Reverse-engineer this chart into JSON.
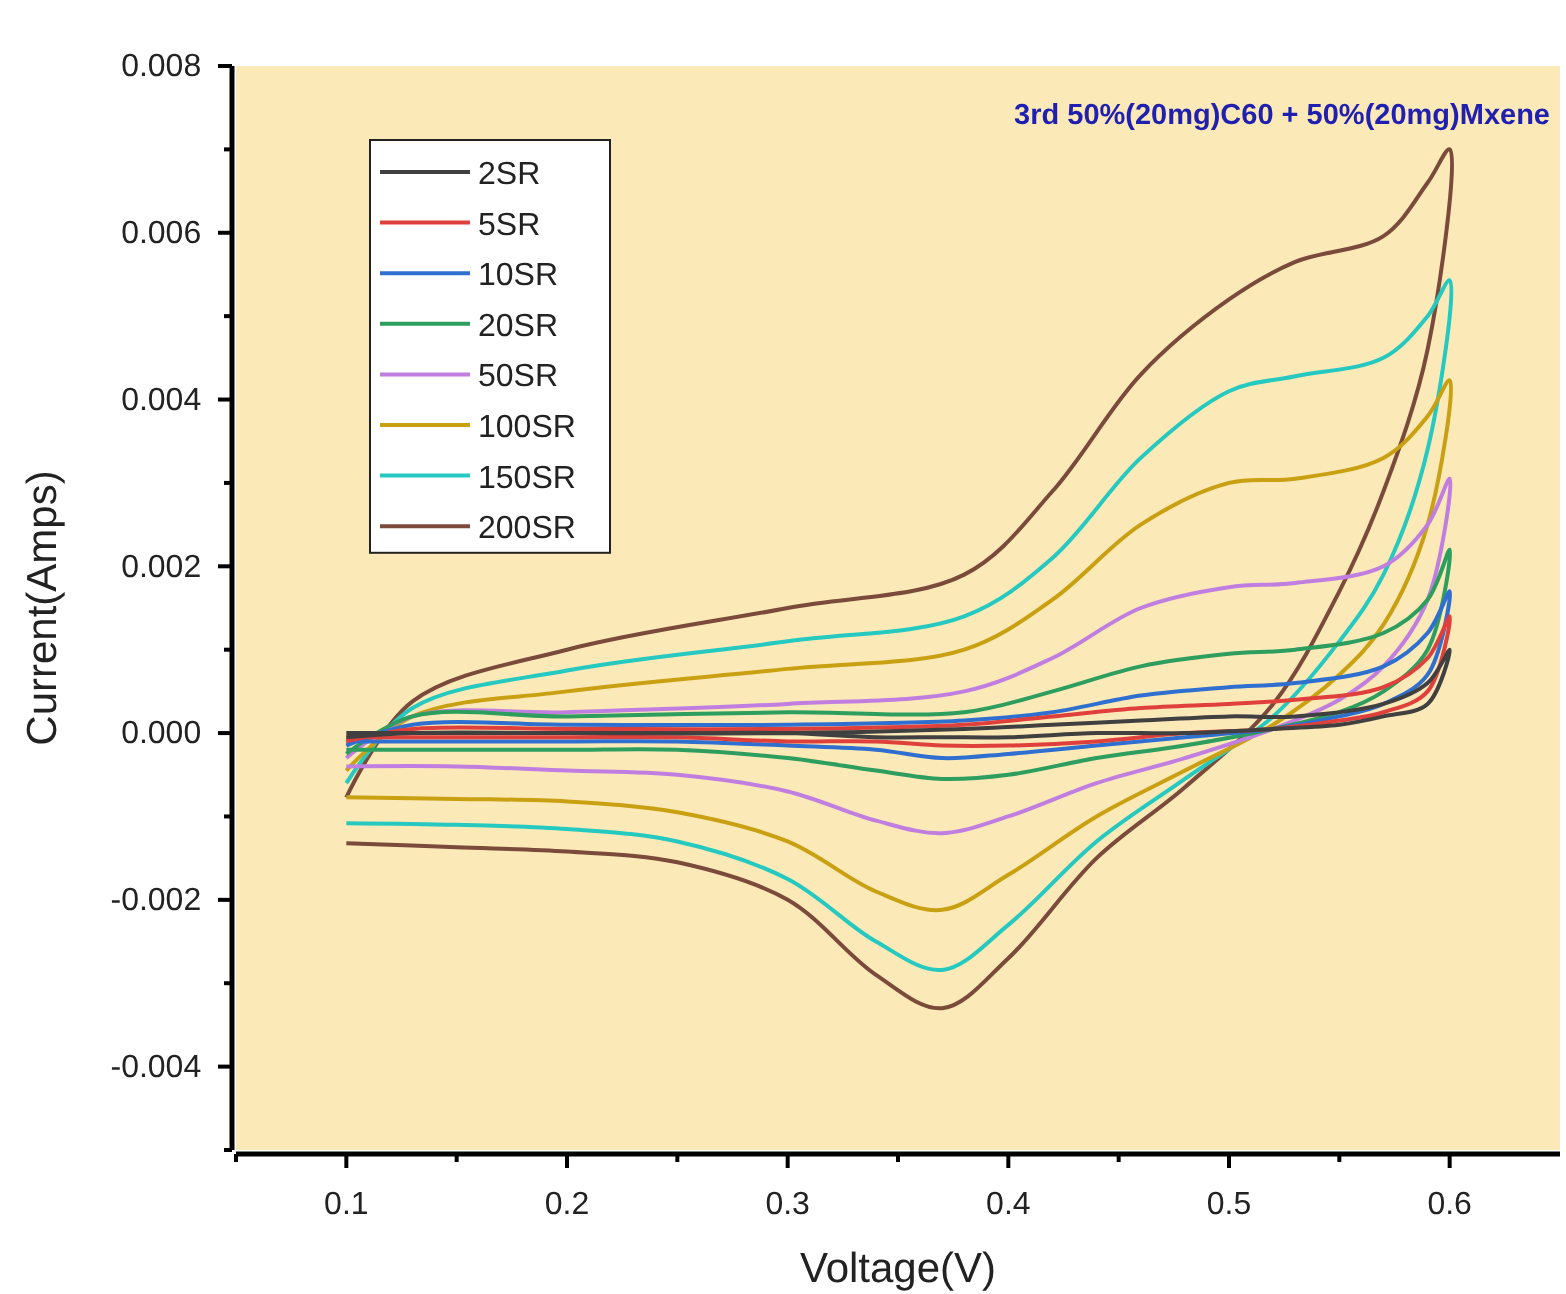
{
  "chart_data": {
    "type": "line",
    "title": "3rd 50%(20mg)C60 + 50%(20mg)Mxene",
    "xlabel": "Voltage(V)",
    "ylabel": "Current(Amps)",
    "x": [
      0.1,
      0.13,
      0.2,
      0.3,
      0.38,
      0.42,
      0.46,
      0.5,
      0.53,
      0.57,
      0.59,
      0.6,
      0.59,
      0.57,
      0.55,
      0.52,
      0.48,
      0.44,
      0.4,
      0.37,
      0.34,
      0.3,
      0.25,
      0.2,
      0.15,
      0.1
    ],
    "series": [
      {
        "name": "2SR",
        "color": "#404040",
        "values": [
          -5e-05,
          0,
          0,
          0,
          5e-05,
          0.0001,
          0.00015,
          0.0002,
          0.0002,
          0.00035,
          0.0006,
          0.001,
          0.00035,
          0.0002,
          0.0001,
          5e-05,
          0,
          0,
          -5e-05,
          -5e-05,
          -5e-05,
          0,
          0,
          0,
          0,
          0
        ]
      },
      {
        "name": "5SR",
        "color": "#e0403c",
        "values": [
          -0.0001,
          5e-05,
          5e-05,
          5e-05,
          0.0001,
          0.0002,
          0.0003,
          0.00035,
          0.0004,
          0.00055,
          0.0009,
          0.0014,
          0.0005,
          0.00025,
          0.00015,
          5e-05,
          0,
          -0.0001,
          -0.00015,
          -0.00015,
          -0.0001,
          -0.0001,
          -5e-05,
          -5e-05,
          -5e-05,
          -5e-05
        ]
      },
      {
        "name": "10SR",
        "color": "#2f6fcf",
        "values": [
          -0.00015,
          0.0001,
          0.0001,
          0.0001,
          0.00015,
          0.00025,
          0.00045,
          0.00055,
          0.0006,
          0.0008,
          0.0012,
          0.0017,
          0.0007,
          0.00035,
          0.0002,
          5e-05,
          -5e-05,
          -0.00015,
          -0.00025,
          -0.0003,
          -0.0002,
          -0.00015,
          -0.0001,
          -0.0001,
          -0.0001,
          -0.0001
        ]
      },
      {
        "name": "20SR",
        "color": "#2e9e5e",
        "values": [
          -0.00025,
          0.0002,
          0.0002,
          0.00025,
          0.00025,
          0.0005,
          0.0008,
          0.00095,
          0.001,
          0.0012,
          0.0016,
          0.0022,
          0.001,
          0.0005,
          0.00025,
          5e-05,
          -0.00015,
          -0.0003,
          -0.0005,
          -0.00055,
          -0.00045,
          -0.0003,
          -0.0002,
          -0.0002,
          -0.0002,
          -0.0002
        ]
      },
      {
        "name": "50SR",
        "color": "#c07fe0",
        "values": [
          -0.0003,
          0.0002,
          0.00025,
          0.00035,
          0.0005,
          0.0009,
          0.0015,
          0.00175,
          0.0018,
          0.002,
          0.0025,
          0.00305,
          0.0016,
          0.0008,
          0.0004,
          5e-05,
          -0.0003,
          -0.0006,
          -0.001,
          -0.0012,
          -0.00105,
          -0.0007,
          -0.0005,
          -0.00045,
          -0.0004,
          -0.0004
        ]
      },
      {
        "name": "100SR",
        "color": "#c8a012",
        "values": [
          -0.00045,
          0.0002,
          0.0005,
          0.00077,
          0.001,
          0.0016,
          0.0025,
          0.003,
          0.00305,
          0.0033,
          0.0038,
          0.00423,
          0.0025,
          0.0013,
          0.0007,
          0.0001,
          -0.00045,
          -0.001,
          -0.0017,
          -0.00212,
          -0.0019,
          -0.0013,
          -0.00095,
          -0.00082,
          -0.00079,
          -0.00077
        ]
      },
      {
        "name": "150SR",
        "color": "#25c9c0",
        "values": [
          -0.0006,
          0.0003,
          0.00075,
          0.0011,
          0.0014,
          0.0021,
          0.0033,
          0.0041,
          0.00428,
          0.0045,
          0.005,
          0.00543,
          0.0034,
          0.0019,
          0.0011,
          0.0002,
          -0.00055,
          -0.0013,
          -0.0023,
          -0.00284,
          -0.0025,
          -0.00175,
          -0.0013,
          -0.00115,
          -0.0011,
          -0.00108
        ]
      },
      {
        "name": "200SR",
        "color": "#7a4a3a",
        "values": [
          -0.00077,
          0.00038,
          0.001,
          0.0015,
          0.0019,
          0.0029,
          0.0043,
          0.0052,
          0.00565,
          0.00596,
          0.0066,
          0.007,
          0.0046,
          0.0029,
          0.0017,
          0.00035,
          -0.00065,
          -0.0015,
          -0.0027,
          -0.0033,
          -0.0029,
          -0.002,
          -0.00155,
          -0.00142,
          -0.00137,
          -0.00132
        ]
      }
    ],
    "xlim": [
      0.05,
      0.65
    ],
    "xticks": [
      {
        "value": 0.05,
        "label": null
      },
      0.1,
      {
        "value": 0.15,
        "label": null
      },
      0.2,
      {
        "value": 0.25,
        "label": null
      },
      0.3,
      {
        "value": 0.35,
        "label": null
      },
      0.4,
      {
        "value": 0.45,
        "label": null
      },
      0.5,
      {
        "value": 0.55,
        "label": null
      },
      0.6
    ],
    "ylim": [
      -0.005,
      0.008
    ],
    "yticks": [
      {
        "value": -0.005,
        "label": null
      },
      {
        "value": -0.004,
        "label": "-0.004"
      },
      {
        "value": -0.003,
        "label": null
      },
      {
        "value": -0.002,
        "label": "-0.002"
      },
      {
        "value": -0.001,
        "label": null
      },
      {
        "value": 0,
        "label": "0.000"
      },
      {
        "value": 0.001,
        "label": null
      },
      {
        "value": 0.002,
        "label": "0.002"
      },
      {
        "value": 0.003,
        "label": null
      },
      {
        "value": 0.004,
        "label": "0.004"
      },
      {
        "value": 0.005,
        "label": null
      },
      {
        "value": 0.006,
        "label": "0.006"
      },
      {
        "value": 0.007,
        "label": null
      },
      {
        "value": 0.008,
        "label": "0.008"
      }
    ],
    "legend": "top left",
    "grid": false,
    "marker": "none",
    "line_style": "solid"
  }
}
